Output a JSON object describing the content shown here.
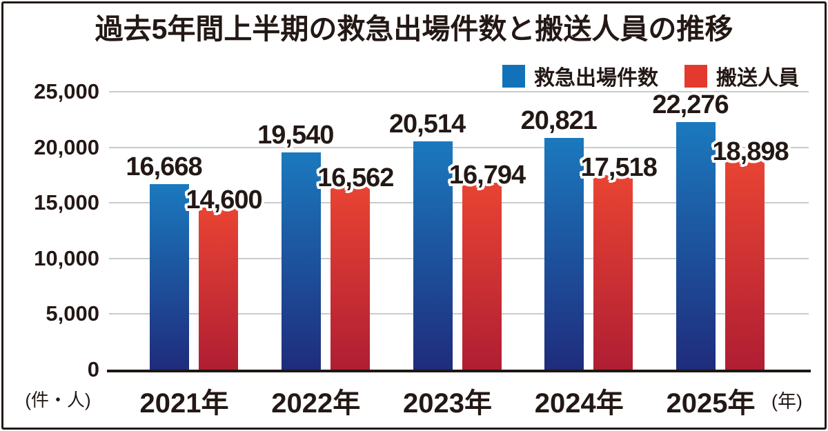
{
  "title": "過去5年間上半期の救急出場件数と搬送人員の推移",
  "legend": {
    "items": [
      {
        "label": "救急出場件数",
        "color": "#1272b9"
      },
      {
        "label": "搬送人員",
        "color": "#e43a2e"
      }
    ]
  },
  "axis": {
    "y_unit_label": "(件・人)",
    "x_unit_label": "(年)"
  },
  "chart_data": {
    "type": "bar",
    "title": "過去5年間上半期の救急出場件数と搬送人員の推移",
    "categories": [
      "2021年",
      "2022年",
      "2023年",
      "2024年",
      "2025年"
    ],
    "series": [
      {
        "name": "救急出場件数",
        "values": [
          16668,
          19540,
          20514,
          20821,
          22276
        ],
        "color_top": "#1b79be",
        "color_bottom": "#1f2c7c"
      },
      {
        "name": "搬送人員",
        "values": [
          14600,
          16562,
          16794,
          17518,
          18898
        ],
        "color_top": "#e94433",
        "color_bottom": "#b01e33"
      }
    ],
    "ylim": [
      0,
      25000
    ],
    "ytick_values": [
      0,
      5000,
      10000,
      15000,
      20000,
      25000
    ],
    "ytick_labels": [
      "0",
      "5,000",
      "10,000",
      "15,000",
      "20,000",
      "25,000"
    ],
    "grid": true,
    "legend_position": "top-right",
    "xlabel": "(年)",
    "ylabel": "(件・人)"
  }
}
